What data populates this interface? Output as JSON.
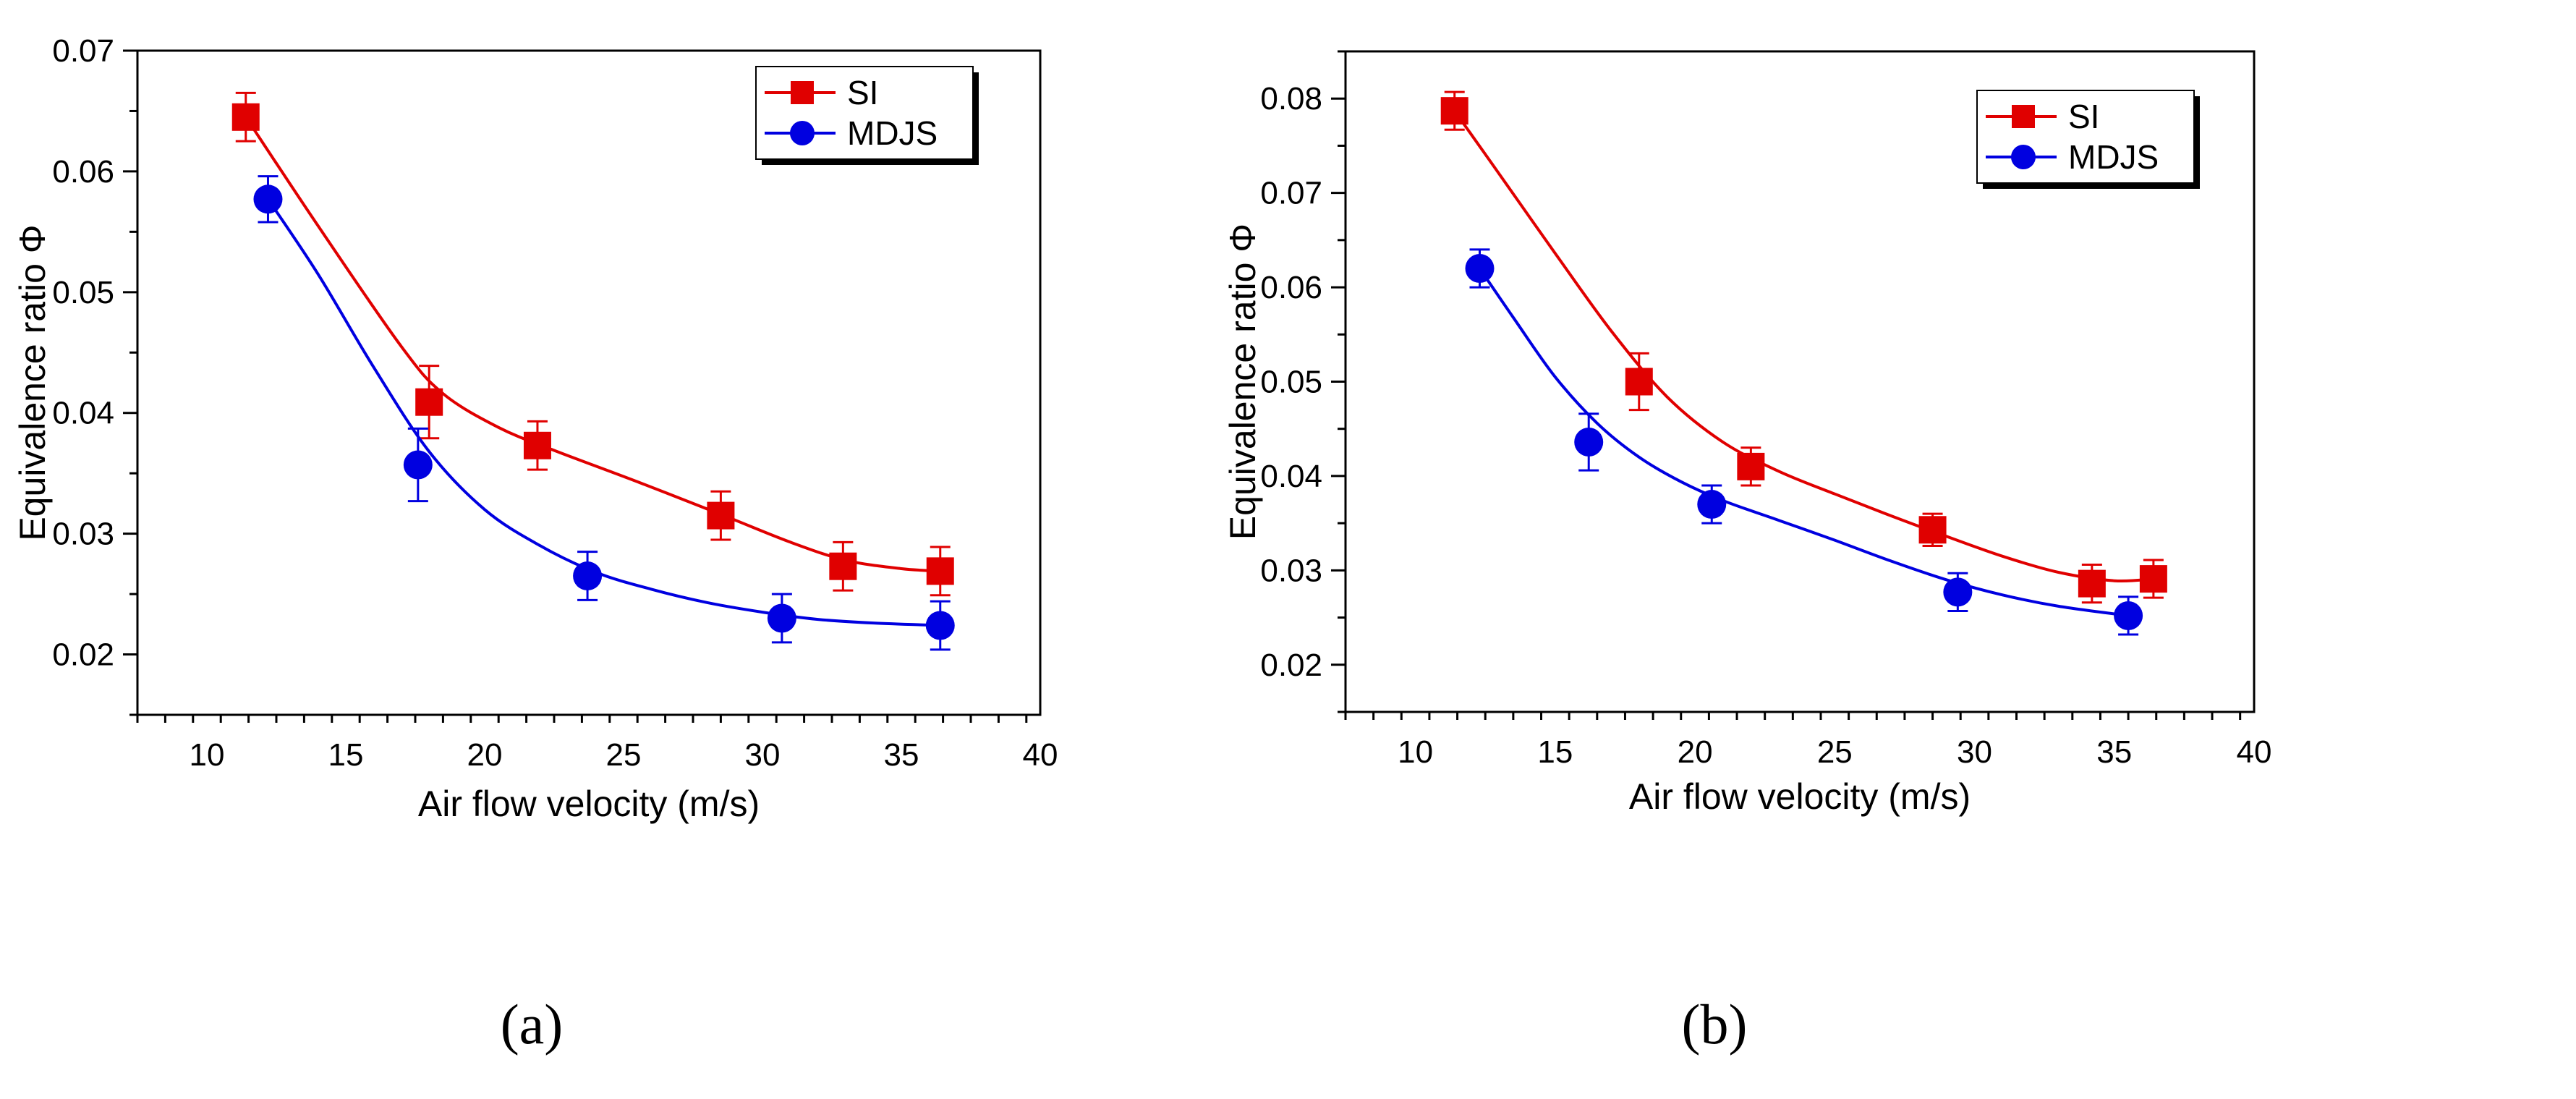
{
  "chart_data": [
    {
      "type": "line",
      "panel_label": "(a)",
      "xlabel": "Air flow velocity (m/s)",
      "ylabel": "Equivalence ratio Φ",
      "xlim": [
        7.5,
        40
      ],
      "ylim": [
        0.015,
        0.07
      ],
      "xticks": [
        10,
        15,
        20,
        25,
        30,
        35,
        40
      ],
      "yticks": [
        0.02,
        0.03,
        0.04,
        0.05,
        0.06,
        0.07
      ],
      "xtick_labels": [
        "10",
        "15",
        "20",
        "25",
        "30",
        "35",
        "40"
      ],
      "ytick_labels": [
        "0.02",
        "0.03",
        "0.04",
        "0.05",
        "0.06",
        "0.07"
      ],
      "grid": false,
      "legend_position": "top-right",
      "series": [
        {
          "name": "SI",
          "marker": "square",
          "color": "#e00000",
          "points": [
            {
              "x": 11.4,
              "y": 0.0645,
              "err": 0.002
            },
            {
              "x": 18.0,
              "y": 0.0409,
              "err": 0.003
            },
            {
              "x": 21.9,
              "y": 0.0373,
              "err": 0.002
            },
            {
              "x": 28.5,
              "y": 0.0315,
              "err": 0.002
            },
            {
              "x": 32.9,
              "y": 0.0273,
              "err": 0.002
            },
            {
              "x": 36.4,
              "y": 0.0269,
              "err": 0.002
            }
          ],
          "fit": [
            {
              "x": 11.4,
              "y": 0.0645
            },
            {
              "x": 14.0,
              "y": 0.0555
            },
            {
              "x": 17.0,
              "y": 0.0455
            },
            {
              "x": 18.5,
              "y": 0.0416
            },
            {
              "x": 20.5,
              "y": 0.0388
            },
            {
              "x": 22.5,
              "y": 0.0369
            },
            {
              "x": 25.5,
              "y": 0.0343
            },
            {
              "x": 28.5,
              "y": 0.0316
            },
            {
              "x": 31.0,
              "y": 0.0293
            },
            {
              "x": 33.0,
              "y": 0.0278
            },
            {
              "x": 35.0,
              "y": 0.0271
            },
            {
              "x": 36.4,
              "y": 0.0269
            }
          ]
        },
        {
          "name": "MDJS",
          "marker": "circle",
          "color": "#0000e0",
          "points": [
            {
              "x": 12.2,
              "y": 0.0577,
              "err": 0.0019
            },
            {
              "x": 17.6,
              "y": 0.0357,
              "err": 0.003
            },
            {
              "x": 23.7,
              "y": 0.0265,
              "err": 0.002
            },
            {
              "x": 30.7,
              "y": 0.023,
              "err": 0.002
            },
            {
              "x": 36.4,
              "y": 0.0224,
              "err": 0.002
            }
          ],
          "fit": [
            {
              "x": 12.2,
              "y": 0.0577
            },
            {
              "x": 14.0,
              "y": 0.0515
            },
            {
              "x": 16.0,
              "y": 0.0438
            },
            {
              "x": 18.0,
              "y": 0.0368
            },
            {
              "x": 20.0,
              "y": 0.032
            },
            {
              "x": 22.0,
              "y": 0.029
            },
            {
              "x": 24.0,
              "y": 0.0268
            },
            {
              "x": 26.0,
              "y": 0.0254
            },
            {
              "x": 28.0,
              "y": 0.0243
            },
            {
              "x": 30.0,
              "y": 0.0235
            },
            {
              "x": 32.0,
              "y": 0.0229
            },
            {
              "x": 34.0,
              "y": 0.0226
            },
            {
              "x": 36.4,
              "y": 0.0224
            }
          ]
        }
      ]
    },
    {
      "type": "line",
      "panel_label": "(b)",
      "xlabel": "Air  flow velocity (m/s)",
      "ylabel": "Equivalence ratio Φ",
      "xlim": [
        7.5,
        40
      ],
      "ylim": [
        0.015,
        0.085
      ],
      "xticks": [
        10,
        15,
        20,
        25,
        30,
        35,
        40
      ],
      "yticks": [
        0.02,
        0.03,
        0.04,
        0.05,
        0.06,
        0.07,
        0.08
      ],
      "xtick_labels": [
        "10",
        "15",
        "20",
        "25",
        "30",
        "35",
        "40"
      ],
      "ytick_labels": [
        "0.02",
        "0.03",
        "0.04",
        "0.05",
        "0.06",
        "0.07",
        "0.08"
      ],
      "grid": false,
      "legend_position": "top-right",
      "series": [
        {
          "name": "SI",
          "marker": "square",
          "color": "#e00000",
          "points": [
            {
              "x": 11.4,
              "y": 0.0787,
              "err": 0.002
            },
            {
              "x": 18.0,
              "y": 0.05,
              "err": 0.003
            },
            {
              "x": 22.0,
              "y": 0.041,
              "err": 0.002
            },
            {
              "x": 28.5,
              "y": 0.0343,
              "err": 0.0017
            },
            {
              "x": 34.2,
              "y": 0.0286,
              "err": 0.002
            },
            {
              "x": 36.4,
              "y": 0.0291,
              "err": 0.002
            }
          ],
          "fit": [
            {
              "x": 11.4,
              "y": 0.0787
            },
            {
              "x": 13.0,
              "y": 0.072
            },
            {
              "x": 15.0,
              "y": 0.0636
            },
            {
              "x": 17.0,
              "y": 0.0554
            },
            {
              "x": 19.0,
              "y": 0.0484
            },
            {
              "x": 21.0,
              "y": 0.0436
            },
            {
              "x": 23.0,
              "y": 0.0405
            },
            {
              "x": 25.0,
              "y": 0.0381
            },
            {
              "x": 27.0,
              "y": 0.0358
            },
            {
              "x": 29.0,
              "y": 0.0336
            },
            {
              "x": 31.0,
              "y": 0.0315
            },
            {
              "x": 33.0,
              "y": 0.0298
            },
            {
              "x": 35.0,
              "y": 0.0289
            },
            {
              "x": 36.4,
              "y": 0.0291
            }
          ]
        },
        {
          "name": "MDJS",
          "marker": "circle",
          "color": "#0000e0",
          "points": [
            {
              "x": 12.3,
              "y": 0.062,
              "err": 0.002
            },
            {
              "x": 16.2,
              "y": 0.0436,
              "err": 0.003
            },
            {
              "x": 20.6,
              "y": 0.037,
              "err": 0.002
            },
            {
              "x": 29.4,
              "y": 0.0277,
              "err": 0.002
            },
            {
              "x": 35.5,
              "y": 0.0252,
              "err": 0.002
            }
          ],
          "fit": [
            {
              "x": 12.3,
              "y": 0.062
            },
            {
              "x": 13.5,
              "y": 0.0568
            },
            {
              "x": 15.0,
              "y": 0.0505
            },
            {
              "x": 16.5,
              "y": 0.0456
            },
            {
              "x": 18.0,
              "y": 0.042
            },
            {
              "x": 19.5,
              "y": 0.0394
            },
            {
              "x": 21.0,
              "y": 0.0374
            },
            {
              "x": 23.0,
              "y": 0.0353
            },
            {
              "x": 25.0,
              "y": 0.0332
            },
            {
              "x": 27.0,
              "y": 0.031
            },
            {
              "x": 29.0,
              "y": 0.029
            },
            {
              "x": 31.0,
              "y": 0.0274
            },
            {
              "x": 33.0,
              "y": 0.0262
            },
            {
              "x": 35.5,
              "y": 0.0252
            }
          ]
        }
      ]
    }
  ]
}
